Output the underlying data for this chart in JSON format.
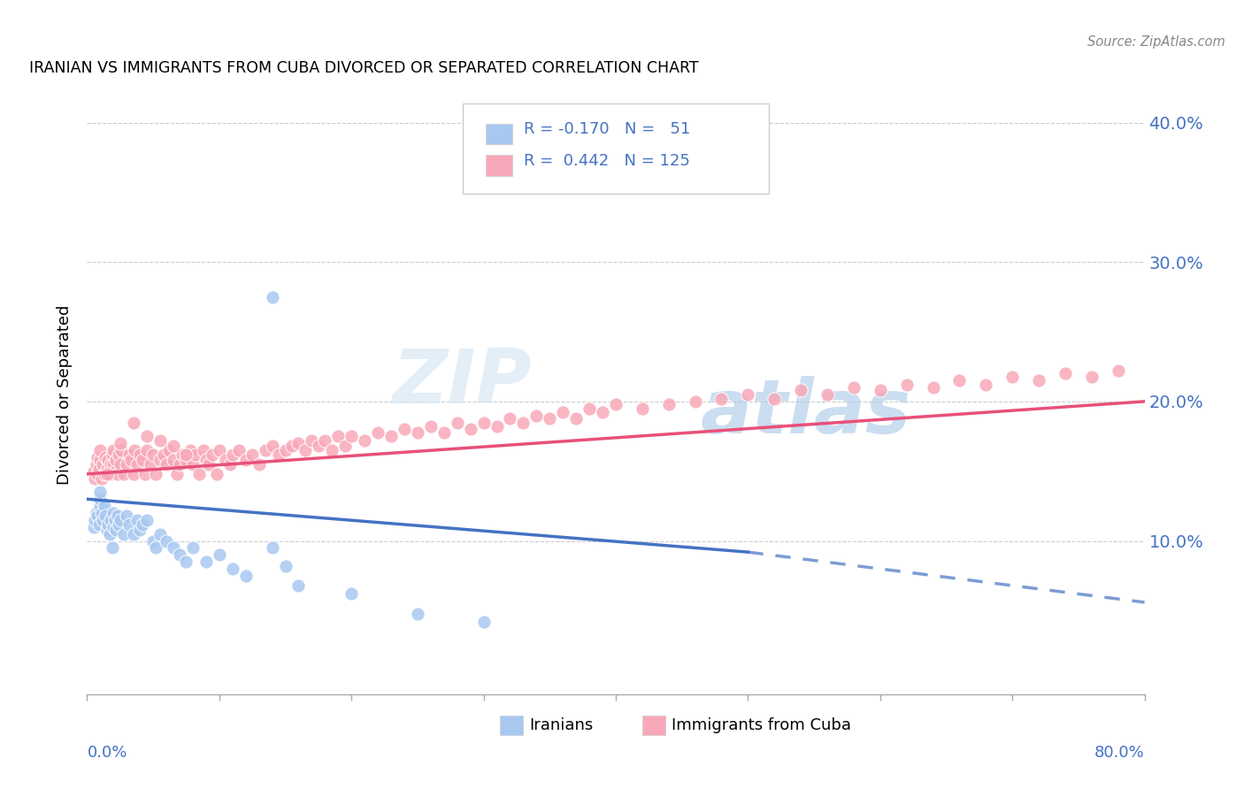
{
  "title": "IRANIAN VS IMMIGRANTS FROM CUBA DIVORCED OR SEPARATED CORRELATION CHART",
  "source": "Source: ZipAtlas.com",
  "ylabel": "Divorced or Separated",
  "xlim": [
    0.0,
    0.8
  ],
  "ylim": [
    -0.01,
    0.42
  ],
  "ytick_positions": [
    0.1,
    0.2,
    0.3,
    0.4
  ],
  "ytick_labels": [
    "10.0%",
    "20.0%",
    "30.0%",
    "40.0%"
  ],
  "watermark_zip": "ZIP",
  "watermark_atlas": "atlas",
  "color_iranians": "#a8c8f0",
  "color_cuba": "#f8a8b8",
  "color_iranians_line": "#4472c4",
  "color_cuba_line": "#e8507a",
  "background_color": "#ffffff",
  "iran_line_x_start": 0.0,
  "iran_line_x_solid_end": 0.5,
  "iran_line_x_dash_end": 0.8,
  "iran_line_y_start": 0.13,
  "iran_line_y_solid_end": 0.092,
  "iran_line_y_dash_end": 0.056,
  "cuba_line_x_start": 0.0,
  "cuba_line_x_end": 0.8,
  "cuba_line_y_start": 0.148,
  "cuba_line_y_end": 0.2,
  "iranians_x": [
    0.005,
    0.006,
    0.007,
    0.008,
    0.009,
    0.01,
    0.01,
    0.01,
    0.011,
    0.012,
    0.013,
    0.014,
    0.015,
    0.016,
    0.017,
    0.018,
    0.019,
    0.02,
    0.02,
    0.021,
    0.022,
    0.023,
    0.024,
    0.025,
    0.028,
    0.03,
    0.032,
    0.035,
    0.038,
    0.04,
    0.042,
    0.045,
    0.05,
    0.052,
    0.055,
    0.06,
    0.065,
    0.07,
    0.075,
    0.08,
    0.09,
    0.1,
    0.11,
    0.12,
    0.14,
    0.15,
    0.16,
    0.2,
    0.25,
    0.3,
    0.14
  ],
  "iranians_y": [
    0.11,
    0.115,
    0.12,
    0.118,
    0.112,
    0.125,
    0.13,
    0.135,
    0.12,
    0.115,
    0.125,
    0.118,
    0.108,
    0.112,
    0.105,
    0.115,
    0.095,
    0.11,
    0.12,
    0.115,
    0.108,
    0.118,
    0.112,
    0.115,
    0.105,
    0.118,
    0.112,
    0.105,
    0.115,
    0.108,
    0.112,
    0.115,
    0.1,
    0.095,
    0.105,
    0.1,
    0.095,
    0.09,
    0.085,
    0.095,
    0.085,
    0.09,
    0.08,
    0.075,
    0.095,
    0.082,
    0.068,
    0.062,
    0.048,
    0.042,
    0.275
  ],
  "cuba_x": [
    0.005,
    0.006,
    0.007,
    0.008,
    0.008,
    0.009,
    0.01,
    0.01,
    0.011,
    0.012,
    0.013,
    0.014,
    0.015,
    0.016,
    0.017,
    0.018,
    0.019,
    0.02,
    0.02,
    0.021,
    0.022,
    0.023,
    0.024,
    0.025,
    0.026,
    0.028,
    0.03,
    0.032,
    0.033,
    0.035,
    0.036,
    0.038,
    0.04,
    0.042,
    0.044,
    0.045,
    0.048,
    0.05,
    0.052,
    0.055,
    0.058,
    0.06,
    0.062,
    0.065,
    0.068,
    0.07,
    0.072,
    0.075,
    0.078,
    0.08,
    0.082,
    0.085,
    0.088,
    0.09,
    0.092,
    0.095,
    0.098,
    0.1,
    0.105,
    0.108,
    0.11,
    0.115,
    0.12,
    0.125,
    0.13,
    0.135,
    0.14,
    0.145,
    0.15,
    0.155,
    0.16,
    0.165,
    0.17,
    0.175,
    0.18,
    0.185,
    0.19,
    0.195,
    0.2,
    0.21,
    0.22,
    0.23,
    0.24,
    0.25,
    0.26,
    0.27,
    0.28,
    0.29,
    0.3,
    0.31,
    0.32,
    0.33,
    0.34,
    0.35,
    0.36,
    0.37,
    0.38,
    0.39,
    0.4,
    0.42,
    0.44,
    0.46,
    0.48,
    0.5,
    0.52,
    0.54,
    0.56,
    0.58,
    0.6,
    0.62,
    0.64,
    0.66,
    0.68,
    0.7,
    0.72,
    0.74,
    0.76,
    0.78,
    0.015,
    0.025,
    0.035,
    0.045,
    0.055,
    0.065,
    0.075
  ],
  "cuba_y": [
    0.15,
    0.145,
    0.155,
    0.16,
    0.148,
    0.152,
    0.158,
    0.165,
    0.145,
    0.155,
    0.148,
    0.16,
    0.152,
    0.158,
    0.148,
    0.155,
    0.162,
    0.155,
    0.165,
    0.15,
    0.158,
    0.148,
    0.162,
    0.155,
    0.165,
    0.148,
    0.155,
    0.162,
    0.158,
    0.148,
    0.165,
    0.155,
    0.162,
    0.158,
    0.148,
    0.165,
    0.155,
    0.162,
    0.148,
    0.158,
    0.162,
    0.155,
    0.165,
    0.158,
    0.148,
    0.155,
    0.162,
    0.158,
    0.165,
    0.155,
    0.162,
    0.148,
    0.165,
    0.158,
    0.155,
    0.162,
    0.148,
    0.165,
    0.158,
    0.155,
    0.162,
    0.165,
    0.158,
    0.162,
    0.155,
    0.165,
    0.168,
    0.162,
    0.165,
    0.168,
    0.17,
    0.165,
    0.172,
    0.168,
    0.172,
    0.165,
    0.175,
    0.168,
    0.175,
    0.172,
    0.178,
    0.175,
    0.18,
    0.178,
    0.182,
    0.178,
    0.185,
    0.18,
    0.185,
    0.182,
    0.188,
    0.185,
    0.19,
    0.188,
    0.192,
    0.188,
    0.195,
    0.192,
    0.198,
    0.195,
    0.198,
    0.2,
    0.202,
    0.205,
    0.202,
    0.208,
    0.205,
    0.21,
    0.208,
    0.212,
    0.21,
    0.215,
    0.212,
    0.218,
    0.215,
    0.22,
    0.218,
    0.222,
    0.148,
    0.17,
    0.185,
    0.175,
    0.172,
    0.168,
    0.162
  ]
}
